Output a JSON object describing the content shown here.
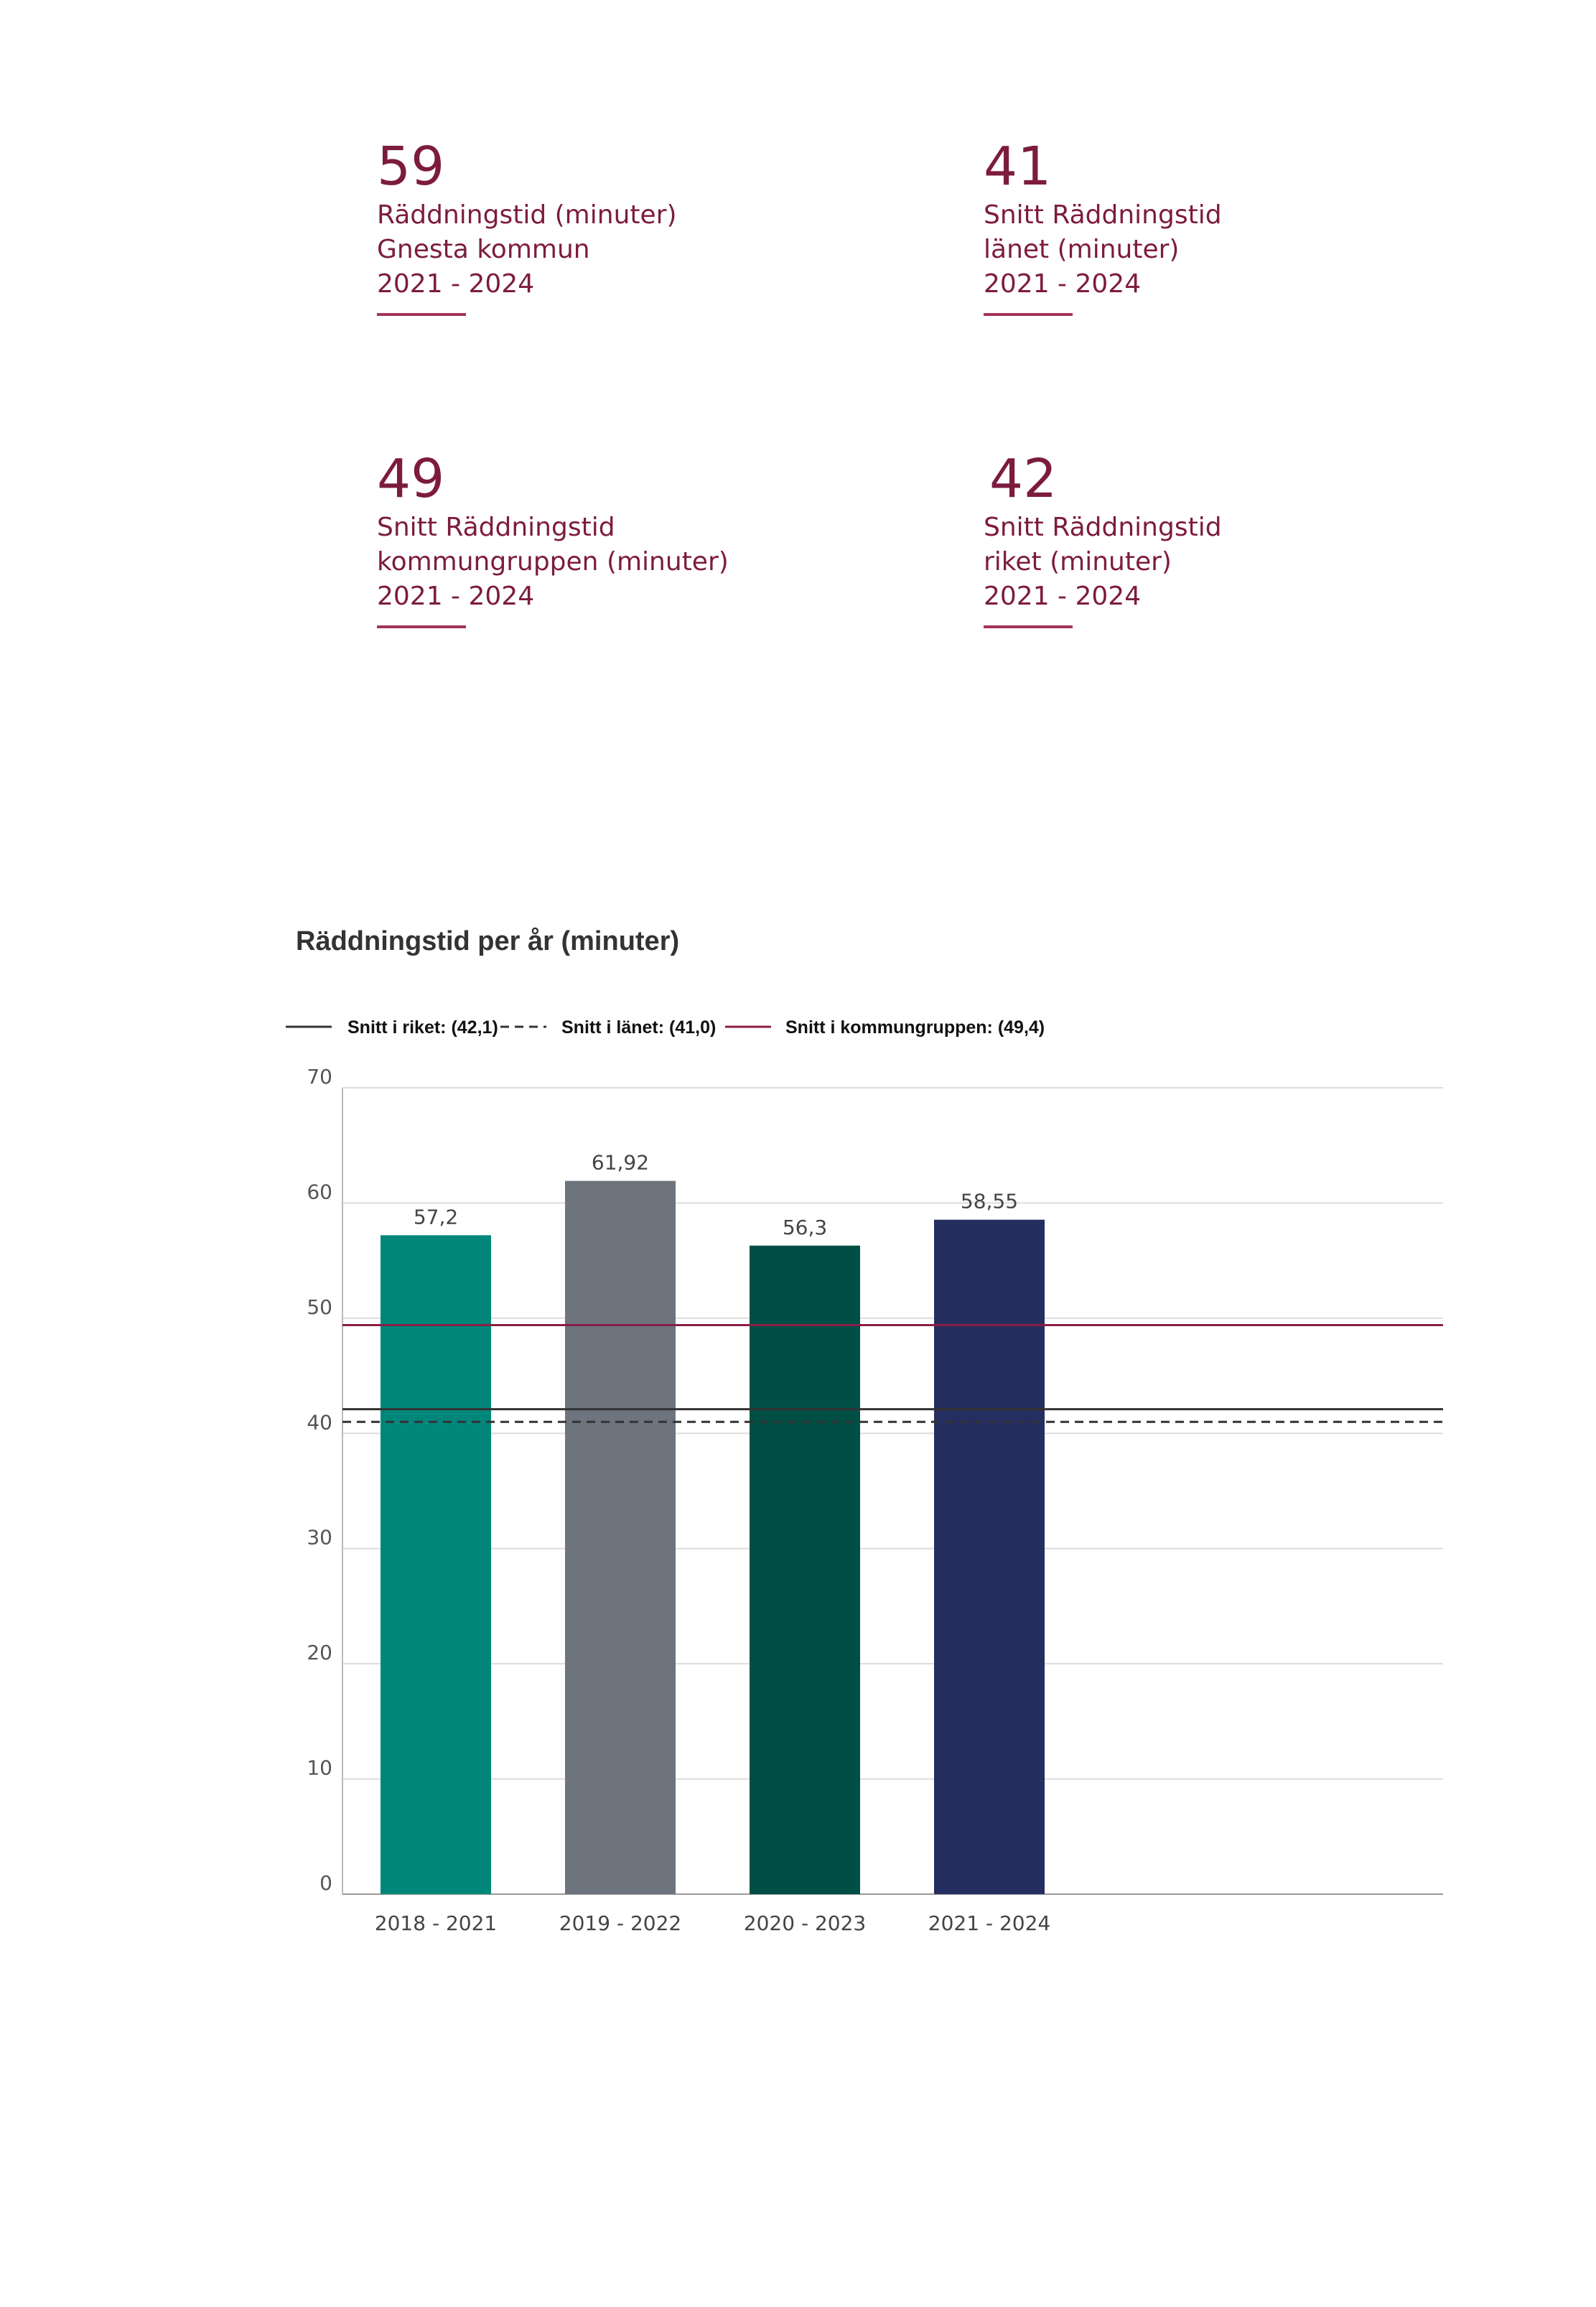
{
  "kpis": [
    {
      "value": "59",
      "lines": [
        "Räddningstid (minuter)",
        "Gnesta kommun",
        "2021 - 2024"
      ]
    },
    {
      "value": "41",
      "lines": [
        "Snitt Räddningstid",
        "länet (minuter)",
        "2021 - 2024"
      ]
    },
    {
      "value": "49",
      "lines": [
        "Snitt Räddningstid",
        "kommungruppen (minuter)",
        "2021 - 2024"
      ]
    },
    {
      "value": "42",
      "lines": [
        "Snitt Räddningstid",
        "riket (minuter)",
        "2021 - 2024"
      ]
    }
  ],
  "colors": {
    "kpi_text": "#7d1b3f",
    "riket_line": "#333333",
    "lanet_line": "#333333",
    "kommungrupp_line": "#8a1e45",
    "bars": [
      "#00877a",
      "#6d747e",
      "#004f45",
      "#252e60"
    ]
  },
  "chart_data": {
    "type": "bar",
    "title": "Räddningstid per år (minuter)",
    "xlabel": "",
    "ylabel": "",
    "categories": [
      "2018 - 2021",
      "2019 - 2022",
      "2020 - 2023",
      "2021 - 2024"
    ],
    "values": [
      57.2,
      61.92,
      56.3,
      58.55
    ],
    "data_labels": [
      "57,2",
      "61,92",
      "56,3",
      "58,55"
    ],
    "ylim": [
      0,
      70
    ],
    "yticks": [
      0,
      10,
      20,
      30,
      40,
      50,
      60,
      70
    ],
    "grid": true,
    "legend_position": "top-left",
    "reference_lines": [
      {
        "name": "Snitt i riket: (42,1)",
        "value": 42.1,
        "style": "solid"
      },
      {
        "name": "Snitt i länet: (41,0)",
        "value": 41.0,
        "style": "dashed"
      },
      {
        "name": "Snitt i kommungruppen: (49,4)",
        "value": 49.4,
        "style": "solid"
      }
    ]
  }
}
